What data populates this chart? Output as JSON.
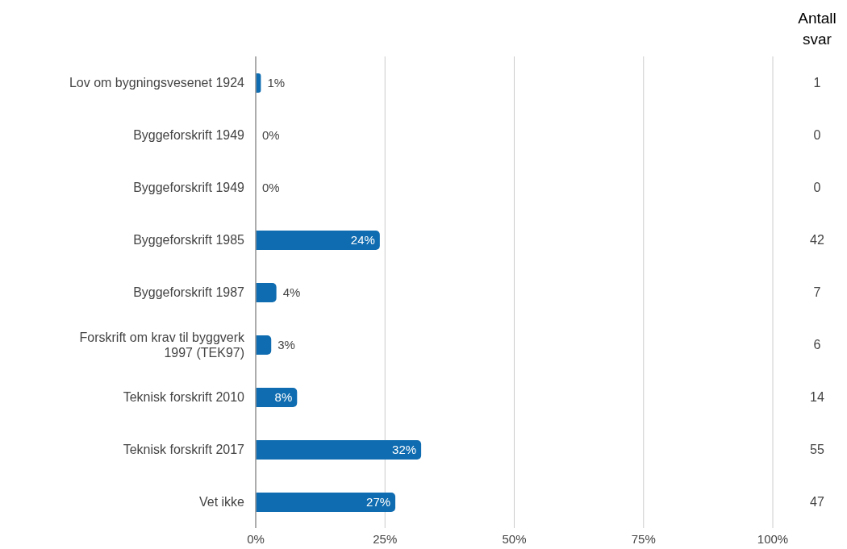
{
  "chart_data": {
    "type": "bar",
    "orientation": "horizontal",
    "categories": [
      "Lov om bygningsvesenet 1924",
      "Byggeforskrift 1949",
      "Byggeforskrift 1949",
      "Byggeforskrift 1985",
      "Byggeforskrift 1987",
      "Forskrift om krav til byggverk 1997 (TEK97)",
      "Teknisk forskrift 2010",
      "Teknisk forskrift 2017",
      "Vet ikke"
    ],
    "values": [
      1,
      0,
      0,
      24,
      4,
      3,
      8,
      32,
      27
    ],
    "value_labels": [
      "1%",
      "0%",
      "0%",
      "24%",
      "4%",
      "3%",
      "8%",
      "32%",
      "27%"
    ],
    "color": "#0f6cb0",
    "xlim": [
      0,
      100
    ],
    "xticks": [
      {
        "value": 0,
        "label": "0%"
      },
      {
        "value": 25,
        "label": "25%"
      },
      {
        "value": 50,
        "label": "50%"
      },
      {
        "value": 75,
        "label": "75%"
      },
      {
        "value": 100,
        "label": "100%"
      }
    ],
    "grid": "x",
    "legend": false,
    "annotations": [
      "Antall svar",
      "1",
      "0",
      "0",
      "42",
      "7",
      "6",
      "14",
      "55",
      "47"
    ]
  }
}
